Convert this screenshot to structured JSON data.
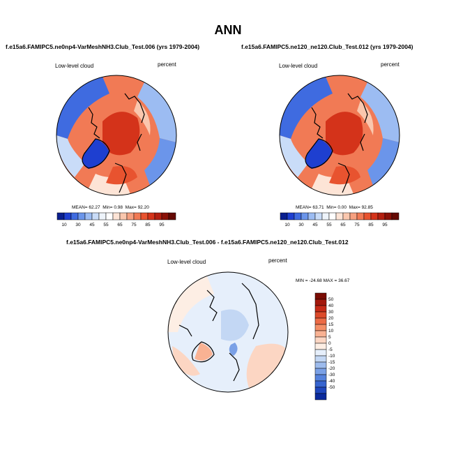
{
  "title": "ANN",
  "chart_data": [
    {
      "type": "heatmap",
      "panel": "left",
      "title": "f.e15a6.FAMIPC5.ne0np4-VarMeshNH3.Club_Test.006 (yrs 1979-2004)",
      "left_label": "Low-level cloud",
      "right_label": "percent",
      "stats": {
        "mean_label": "MEAN=",
        "mean": "62.27",
        "min_label": "Min=",
        "min": "0.98",
        "max_label": "Max=",
        "max": "92.20"
      },
      "levels": [
        "10",
        "30",
        "45",
        "55",
        "65",
        "75",
        "85",
        "95"
      ],
      "colors": [
        "#0a1f8f",
        "#1e3fd0",
        "#3f6be0",
        "#6b95ea",
        "#9cbcf2",
        "#c9dcf8",
        "#eef4fb",
        "#ffffff",
        "#fde4d6",
        "#fac7ae",
        "#f6a080",
        "#f17a55",
        "#e8532f",
        "#d4331a",
        "#b31f10",
        "#8a1108",
        "#650a04"
      ],
      "projection": "north-polar-stereographic",
      "pattern": "high over Arctic basin and oceans (75-90), low over Greenland, Siberia and North America (20-50)"
    },
    {
      "type": "heatmap",
      "panel": "right",
      "title": "f.e15a6.FAMIPC5.ne120_ne120.Club_Test.012 (yrs 1979-2004)",
      "left_label": "Low-level cloud",
      "right_label": "percent",
      "stats": {
        "mean_label": "MEAN=",
        "mean": "63.71",
        "min_label": "Min=",
        "min": "0.00",
        "max_label": "Max=",
        "max": "92.85"
      },
      "levels": [
        "10",
        "30",
        "45",
        "55",
        "65",
        "75",
        "85",
        "95"
      ],
      "colors": [
        "#0a1f8f",
        "#1e3fd0",
        "#3f6be0",
        "#6b95ea",
        "#9cbcf2",
        "#c9dcf8",
        "#eef4fb",
        "#ffffff",
        "#fde4d6",
        "#fac7ae",
        "#f6a080",
        "#f17a55",
        "#e8532f",
        "#d4331a",
        "#b31f10",
        "#8a1108",
        "#650a04"
      ],
      "projection": "north-polar-stereographic",
      "pattern": "high over Arctic basin and oceans (75-90), low over Greenland, Siberia and North America (20-50)"
    },
    {
      "type": "heatmap",
      "panel": "difference",
      "title": "f.e15a6.FAMIPC5.ne0np4-VarMeshNH3.Club_Test.006 - f.e15a6.FAMIPC5.ne120_ne120.Club_Test.012",
      "left_label": "Low-level cloud",
      "right_label": "percent",
      "stats": {
        "min_label": "MIN =",
        "min": "-24.68",
        "max_label": "MAX =",
        "max": "36.67"
      },
      "levels": [
        "50",
        "40",
        "30",
        "20",
        "15",
        "10",
        "5",
        "0",
        "-5",
        "-10",
        "-15",
        "-20",
        "-30",
        "-40",
        "-50"
      ],
      "colors": [
        "#7a0c04",
        "#a3180c",
        "#c62a17",
        "#dc4a2a",
        "#ec6b45",
        "#f48e66",
        "#f9b293",
        "#fcd6c3",
        "#fdeee4",
        "#e6effb",
        "#c3d7f4",
        "#9dbbed",
        "#7aa0e6",
        "#5582dc",
        "#3664cf",
        "#1e46bd",
        "#0a2a9c"
      ],
      "projection": "north-polar-stereographic",
      "pattern": "mostly near zero, light blue over Arctic and Europe, light red over Pacific and Atlantic edges"
    }
  ]
}
